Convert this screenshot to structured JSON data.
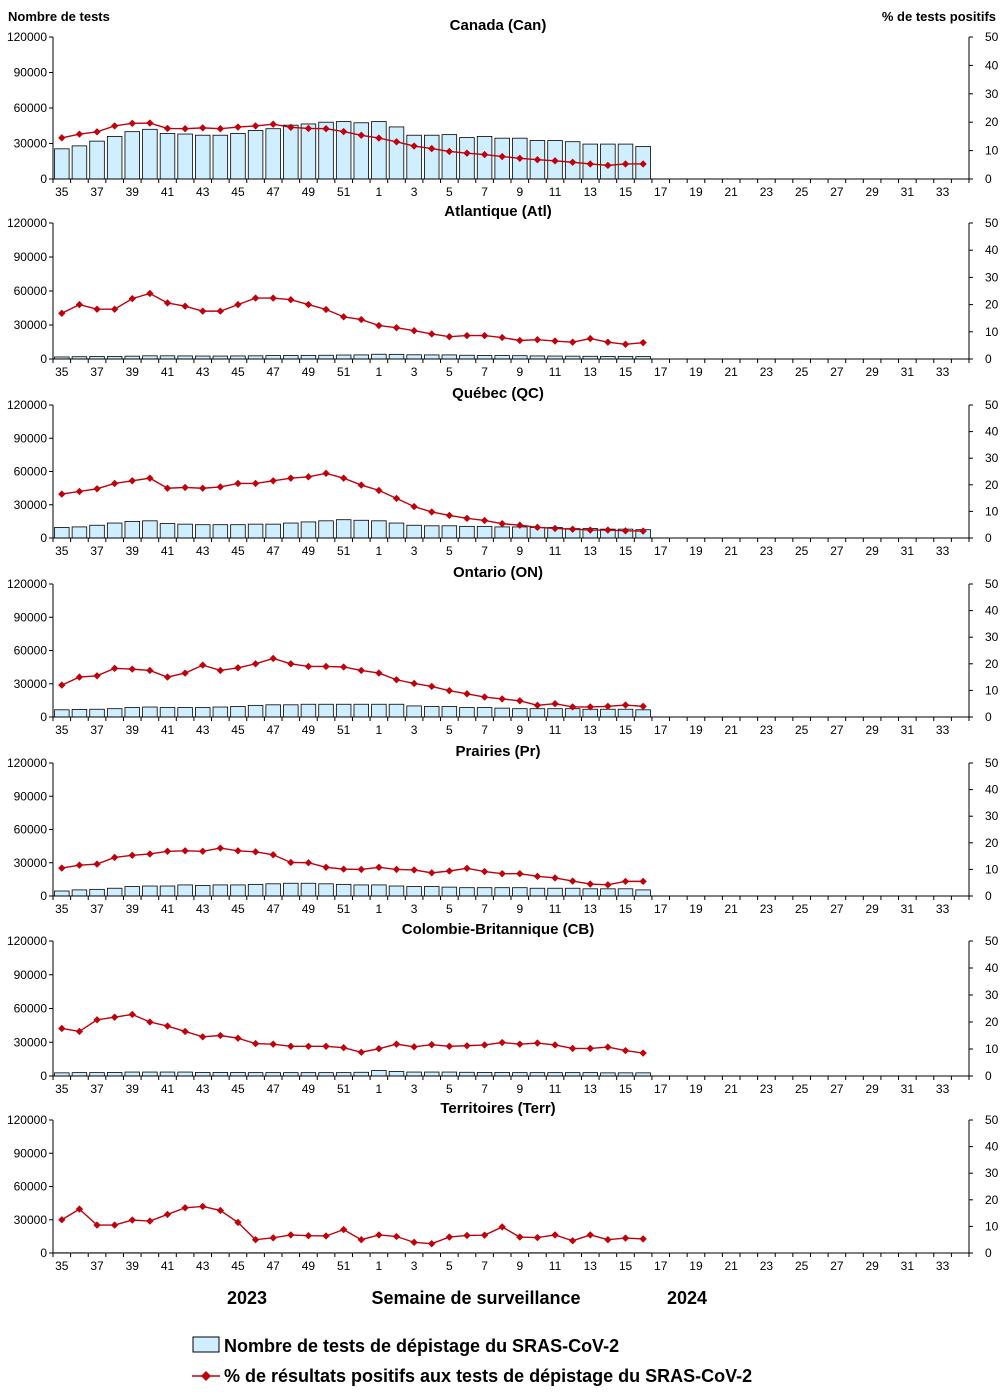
{
  "chart_data": {
    "type": "bar",
    "left_axis_title": "Nombre de tests",
    "right_axis_title": "% de tests positifs",
    "x_title": "Semaine de surveillance",
    "year_labels": [
      "2023",
      "2024"
    ],
    "weeks": [
      35,
      36,
      37,
      38,
      39,
      40,
      41,
      42,
      43,
      44,
      45,
      46,
      47,
      48,
      49,
      50,
      51,
      52,
      1,
      2,
      3,
      4,
      5,
      6,
      7,
      8,
      9,
      10,
      11,
      12,
      13,
      14,
      15,
      16,
      17,
      18,
      19,
      20,
      21,
      22,
      23,
      24,
      25,
      26,
      27,
      28,
      29,
      30,
      31,
      32,
      33,
      34
    ],
    "tick_labels": [
      "35",
      "37",
      "39",
      "41",
      "43",
      "45",
      "47",
      "49",
      "51",
      "1",
      "3",
      "5",
      "7",
      "9",
      "11",
      "13",
      "15",
      "17",
      "19",
      "21",
      "23",
      "25",
      "27",
      "29",
      "31",
      "33"
    ],
    "ylim_left": [
      0,
      120000
    ],
    "left_ticks": [
      "0",
      "30000",
      "60000",
      "90000",
      "120000"
    ],
    "ylim_right": [
      0,
      50
    ],
    "right_ticks": [
      "0",
      "10",
      "20",
      "30",
      "40",
      "50"
    ],
    "legend": {
      "bars": "Nombre de tests de dépistage du SRAS-CoV-2",
      "line": "% de résultats positifs aux tests de dépistage du SRAS-CoV-2"
    },
    "colors": {
      "bar_fill": "#cfeeff",
      "bar_stroke": "#000000",
      "line": "#c0000a",
      "axis": "#000000"
    },
    "panels": [
      {
        "title": "Canada (Can)",
        "tests": [
          25500,
          28000,
          32000,
          36000,
          40000,
          42000,
          38500,
          38000,
          37000,
          37000,
          38500,
          41000,
          42500,
          45500,
          46500,
          48000,
          48500,
          47500,
          48500,
          44000,
          37000,
          37000,
          37500,
          35000,
          36000,
          34500,
          34500,
          32500,
          32500,
          31500,
          29500,
          29500,
          29500,
          27500
        ],
        "positivity": [
          14.5,
          15.8,
          16.6,
          18.7,
          19.6,
          19.7,
          17.8,
          17.7,
          18.0,
          17.7,
          18.3,
          18.7,
          19.3,
          18.2,
          17.8,
          17.7,
          16.7,
          15.4,
          14.4,
          13.1,
          11.6,
          10.7,
          9.7,
          9.1,
          8.6,
          7.9,
          7.3,
          6.8,
          6.4,
          5.9,
          5.3,
          4.8,
          5.3,
          5.3
        ]
      },
      {
        "title": "Atlantique (Atl)",
        "tests": [
          1800,
          2000,
          2200,
          2300,
          2500,
          2800,
          2800,
          2700,
          2600,
          2600,
          2700,
          2800,
          3000,
          3100,
          3200,
          3300,
          3500,
          3600,
          4200,
          4100,
          3700,
          3600,
          3600,
          3300,
          3100,
          3000,
          2900,
          2700,
          2600,
          2500,
          2400,
          2300,
          2300,
          2100
        ],
        "positivity": [
          16.8,
          20.0,
          18.3,
          18.3,
          22.2,
          24.1,
          20.6,
          19.4,
          17.6,
          17.6,
          20.0,
          22.4,
          22.4,
          21.8,
          20.0,
          18.2,
          15.5,
          14.5,
          12.3,
          11.5,
          10.4,
          9.2,
          8.2,
          8.6,
          8.6,
          7.9,
          6.8,
          7.1,
          6.6,
          6.2,
          7.5,
          6.2,
          5.4,
          6.0
        ]
      },
      {
        "title": "Québec (QC)",
        "tests": [
          9500,
          10000,
          11500,
          13500,
          15000,
          15500,
          13000,
          12500,
          12000,
          12000,
          12000,
          12500,
          12500,
          13500,
          14500,
          15500,
          16500,
          16000,
          15500,
          13500,
          11500,
          11000,
          11000,
          10500,
          10500,
          10000,
          10000,
          9500,
          9500,
          8500,
          8500,
          8000,
          8000,
          7500
        ],
        "positivity": [
          16.5,
          17.5,
          18.5,
          20.5,
          21.5,
          22.5,
          18.7,
          19.0,
          18.7,
          19.2,
          20.5,
          20.5,
          21.5,
          22.5,
          23.0,
          24.3,
          22.5,
          19.9,
          17.9,
          14.9,
          11.8,
          9.8,
          8.5,
          7.4,
          6.6,
          5.4,
          4.8,
          4.0,
          3.6,
          3.3,
          3.0,
          3.0,
          2.7,
          2.6
        ]
      },
      {
        "title": "Ontario (ON)",
        "tests": [
          6500,
          6800,
          7000,
          7500,
          8500,
          9000,
          8500,
          8500,
          8500,
          9000,
          9500,
          10500,
          11000,
          11000,
          11500,
          11500,
          11500,
          11500,
          11500,
          11500,
          10000,
          9500,
          9500,
          8500,
          8500,
          8000,
          7500,
          7500,
          7500,
          7500,
          7000,
          7000,
          7000,
          6500
        ],
        "positivity": [
          12.0,
          15.0,
          15.5,
          18.3,
          18.0,
          17.5,
          15.0,
          16.5,
          19.5,
          17.5,
          18.5,
          20.0,
          22.0,
          20.0,
          19.0,
          19.0,
          18.8,
          17.5,
          16.5,
          14.0,
          12.6,
          11.5,
          9.9,
          8.7,
          7.5,
          6.8,
          6.1,
          4.4,
          5.0,
          3.8,
          3.8,
          4.0,
          4.5,
          4.0
        ]
      },
      {
        "title": "Prairies (Pr)",
        "tests": [
          4500,
          5500,
          6000,
          7000,
          8500,
          9000,
          9000,
          10000,
          9500,
          10000,
          10000,
          10500,
          11000,
          11500,
          11500,
          11000,
          10500,
          10000,
          10000,
          9000,
          8500,
          8500,
          8000,
          7500,
          7500,
          7500,
          7500,
          7000,
          7000,
          7000,
          6500,
          6500,
          6500,
          5500
        ],
        "positivity": [
          10.5,
          11.6,
          12.0,
          14.5,
          15.3,
          15.8,
          16.8,
          17.0,
          16.8,
          18.0,
          17.0,
          16.6,
          15.5,
          12.6,
          12.5,
          10.8,
          10.1,
          10.0,
          10.8,
          10.0,
          9.8,
          8.7,
          9.4,
          10.4,
          9.2,
          8.4,
          8.4,
          7.4,
          6.8,
          5.6,
          4.5,
          4.2,
          5.5,
          5.5
        ]
      },
      {
        "title": "Colombie-Britannique (CB)",
        "tests": [
          2800,
          3000,
          3000,
          3200,
          3500,
          3500,
          3500,
          3500,
          3200,
          3200,
          3200,
          3000,
          3000,
          3000,
          3000,
          3000,
          3000,
          3300,
          4800,
          4000,
          3500,
          3500,
          3500,
          3300,
          3200,
          3200,
          3000,
          3000,
          3000,
          3000,
          3000,
          2800,
          2800,
          2800
        ],
        "positivity": [
          17.6,
          16.5,
          20.8,
          21.8,
          22.8,
          20.0,
          18.5,
          16.5,
          14.5,
          15.0,
          14.0,
          12.0,
          11.8,
          11.0,
          11.0,
          11.0,
          10.5,
          8.8,
          10.1,
          11.8,
          10.8,
          11.6,
          11.0,
          11.2,
          11.5,
          12.4,
          11.8,
          12.2,
          11.5,
          10.2,
          10.2,
          10.7,
          9.4,
          8.5
        ]
      },
      {
        "title": "Territoires (Terr)",
        "tests": [
          200,
          200,
          200,
          200,
          200,
          200,
          200,
          200,
          200,
          200,
          200,
          200,
          200,
          200,
          200,
          200,
          200,
          200,
          200,
          200,
          200,
          200,
          200,
          200,
          200,
          200,
          200,
          200,
          200,
          200,
          200,
          200,
          200,
          200
        ],
        "positivity": [
          12.5,
          16.5,
          10.5,
          10.5,
          12.4,
          12.0,
          14.5,
          17.0,
          17.5,
          16.0,
          11.5,
          5.0,
          5.7,
          6.8,
          6.5,
          6.4,
          8.8,
          5.0,
          6.8,
          6.2,
          4.0,
          3.5,
          6.0,
          6.6,
          6.7,
          9.8,
          6.0,
          5.8,
          6.8,
          4.6,
          6.8,
          5.0,
          5.6,
          5.3
        ]
      }
    ]
  }
}
